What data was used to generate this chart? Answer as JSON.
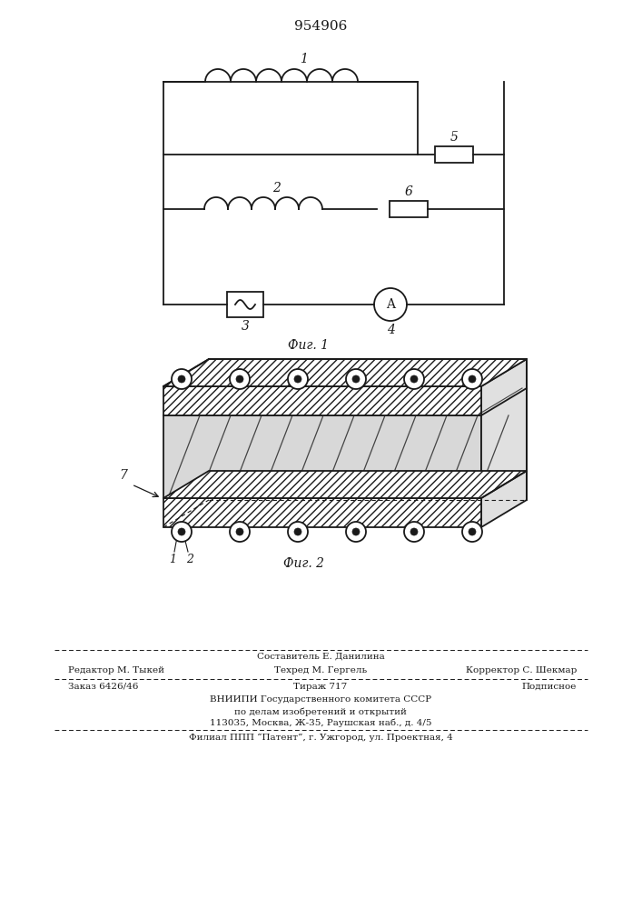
{
  "title": "954906",
  "line_color": "#1a1a1a",
  "footer_line1_center": "Составитель Е. Данилина",
  "footer_line2_left": "Редактор М. Тыкей",
  "footer_line2_center": "Техред М. Гергель",
  "footer_line2_right": "Корректор С. Шекмар",
  "footer_line3_left": "Заказ 6426/46",
  "footer_line3_center": "Тираж 717",
  "footer_line3_right": "Подписное",
  "footer_line4": "ВНИИПИ Государственного комитета СССР",
  "footer_line5": "по делам изобретений и открытий",
  "footer_line6": "113035, Москва, Ж-35, Раушская наб., д. 4/5",
  "footer_line7": "Филиал ППП “Патент”, г. Ужгород, ул. Проектная, 4"
}
